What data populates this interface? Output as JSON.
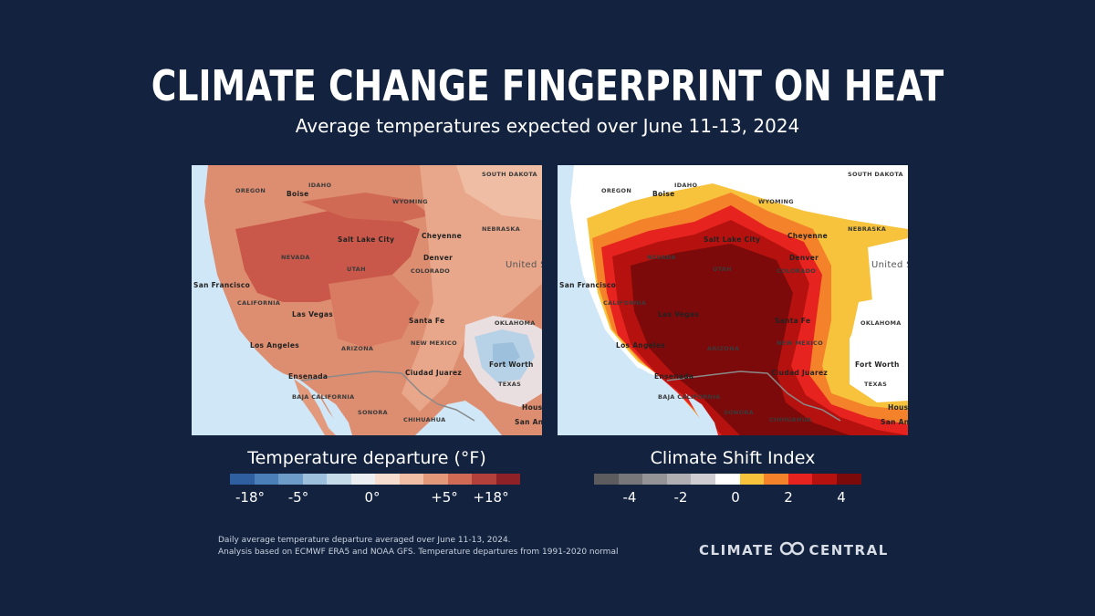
{
  "title": "CLIMATE CHANGE FINGERPRINT ON HEAT",
  "subtitle": "Average temperatures expected over June 11-13, 2024",
  "left_map": {
    "legend_title": "Temperature departure (°F)",
    "legend_colors": [
      "#2f5f9e",
      "#4a7fb8",
      "#6d9cc8",
      "#9dc0dc",
      "#c6dbea",
      "#eceff1",
      "#f6ddd0",
      "#f0bfa5",
      "#e4987a",
      "#d06a55",
      "#b3403b",
      "#8e2127"
    ],
    "tick_labels": [
      "-18°",
      "-5°",
      "0°",
      "+5°",
      "+18°"
    ],
    "places": [
      "OREGON",
      "Boise",
      "IDAHO",
      "WYOMING",
      "SOUTH DAKOTA",
      "NEBRASKA",
      "NEVADA",
      "Salt Lake City",
      "UTAH",
      "Cheyenne",
      "Denver",
      "COLORADO",
      "United States",
      "San Francisco",
      "CALIFORNIA",
      "Las Vegas",
      "Santa Fe",
      "OKLAHOMA",
      "Los Angeles",
      "ARIZONA",
      "NEW MEXICO",
      "Fort Worth",
      "Ensenada",
      "BAJA CALIFORNIA",
      "Ciudad Juarez",
      "TEXAS",
      "Houston",
      "SONORA",
      "CHIHUAHUA",
      "San Antonio"
    ]
  },
  "right_map": {
    "legend_title": "Climate Shift Index",
    "legend_colors": [
      "#5c5c5f",
      "#77777a",
      "#949497",
      "#b0afb2",
      "#cfcdd1",
      "#ffffff",
      "#f7c23c",
      "#f4822a",
      "#e6231f",
      "#b5120f",
      "#7d0a0a"
    ],
    "tick_labels": [
      "-4",
      "-2",
      "0",
      "2",
      "4"
    ],
    "places": [
      "OREGON",
      "Boise",
      "IDAHO",
      "WYOMING",
      "SOUTH DAKOTA",
      "NEBRASKA",
      "NEVADA",
      "Salt Lake City",
      "UTAH",
      "Cheyenne",
      "Denver",
      "COLORADO",
      "United States",
      "San Francisco",
      "CALIFORNIA",
      "Las Vegas",
      "Santa Fe",
      "OKLAHOMA",
      "Los Angeles",
      "ARIZONA",
      "NEW MEXICO",
      "Fort Worth",
      "Ensenada",
      "BAJA CALIFORNIA",
      "Ciudad Juarez",
      "TEXAS",
      "Houston",
      "SONORA",
      "CHIHUAHUA",
      "San Antonio"
    ]
  },
  "footnote": {
    "line1": "Daily average temperature departure averaged over June 11-13, 2024.",
    "line2": "Analysis based on ECMWF ERA5 and NOAA GFS. Temperature departures from 1991-2020 normal"
  },
  "brand": {
    "left_word": "CLIMATE",
    "right_word": "CENTRAL",
    "logo_icon": "linked-rings-icon"
  }
}
